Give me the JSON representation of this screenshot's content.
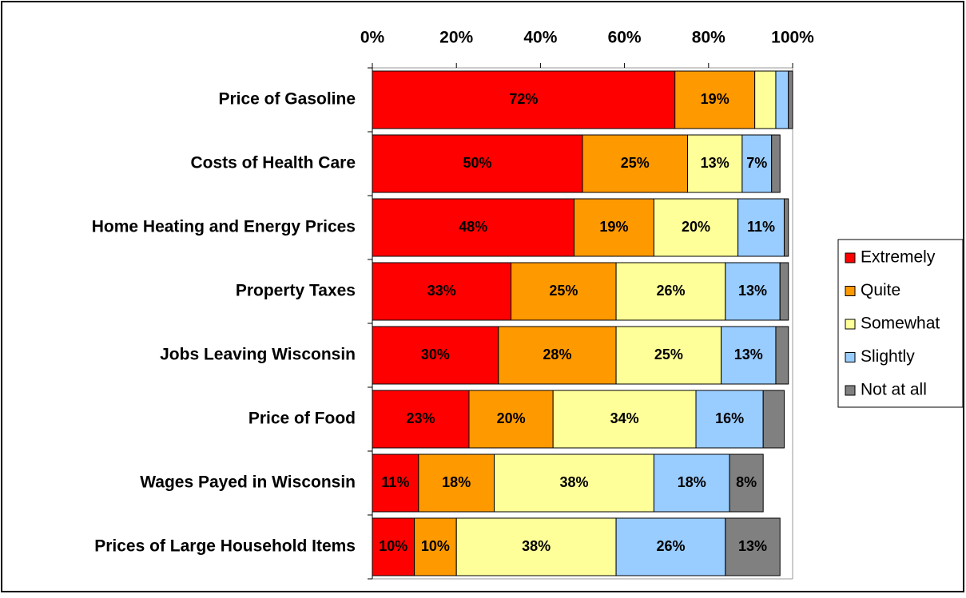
{
  "chart_data": {
    "type": "stacked-bar-horizontal",
    "categories": [
      "Price of Gasoline",
      "Costs of Health Care",
      "Home Heating and Energy Prices",
      "Property Taxes",
      "Jobs Leaving Wisconsin",
      "Price of Food",
      "Wages Payed in Wisconsin",
      "Prices of Large Household Items"
    ],
    "series": [
      {
        "name": "Extremely",
        "color": "#ff0000",
        "values": [
          72,
          50,
          48,
          33,
          30,
          23,
          11,
          10
        ],
        "value_labels": [
          "72%",
          "50%",
          "48%",
          "33%",
          "30%",
          "23%",
          "11%",
          "10%"
        ]
      },
      {
        "name": "Quite",
        "color": "#ff9900",
        "values": [
          19,
          25,
          19,
          25,
          28,
          20,
          18,
          10
        ],
        "value_labels": [
          "19%",
          "25%",
          "19%",
          "25%",
          "28%",
          "20%",
          "18%",
          "10%"
        ]
      },
      {
        "name": "Somewhat",
        "color": "#ffff99",
        "values": [
          5,
          13,
          20,
          26,
          25,
          34,
          38,
          38
        ],
        "value_labels": [
          null,
          "13%",
          "20%",
          "26%",
          "25%",
          "34%",
          "38%",
          "38%"
        ]
      },
      {
        "name": "Slightly",
        "color": "#99ccff",
        "values": [
          3,
          7,
          11,
          13,
          13,
          16,
          18,
          26
        ],
        "value_labels": [
          null,
          "7%",
          "11%",
          "13%",
          "13%",
          "16%",
          "18%",
          "26%"
        ]
      },
      {
        "name": "Not at all",
        "color": "#808080",
        "values": [
          1,
          2,
          1,
          2,
          3,
          5,
          8,
          13
        ],
        "value_labels": [
          null,
          null,
          null,
          null,
          null,
          null,
          "8%",
          "13%"
        ]
      }
    ],
    "xlim": [
      0,
      100
    ],
    "xticks": [
      {
        "value": 0,
        "label": "0%"
      },
      {
        "value": 20,
        "label": "20%"
      },
      {
        "value": 40,
        "label": "40%"
      },
      {
        "value": 60,
        "label": "60%"
      },
      {
        "value": 80,
        "label": "80%"
      },
      {
        "value": 100,
        "label": "100%"
      }
    ],
    "legend": "right"
  }
}
